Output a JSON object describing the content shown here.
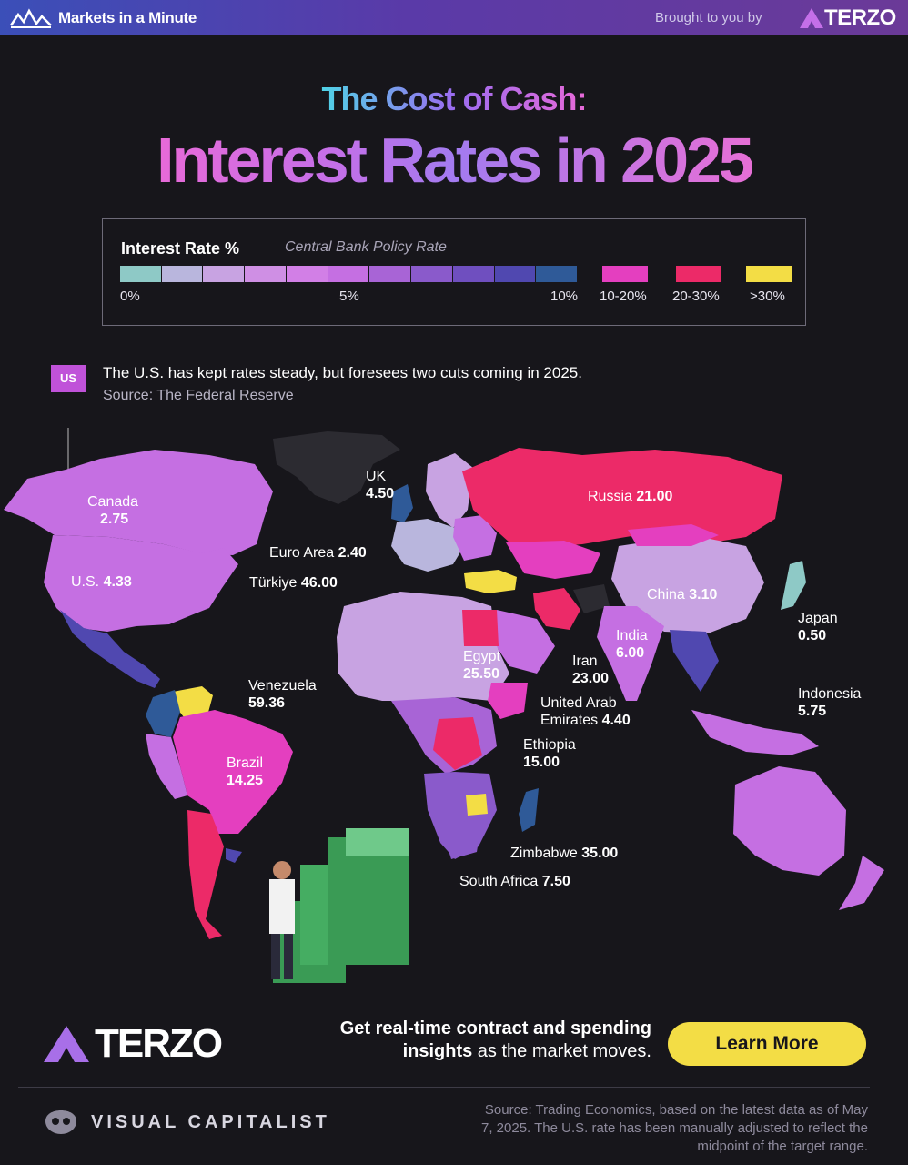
{
  "header": {
    "brand": "Markets in a Minute",
    "brought_by": "Brought to you by",
    "sponsor": "TERZO"
  },
  "title": {
    "line1": "The Cost of Cash:",
    "line2": "Interest Rates in 2025"
  },
  "legend": {
    "title": "Interest Rate %",
    "subtitle": "Central Bank Policy Rate",
    "scale_colors": [
      "#8ec9c6",
      "#b9b6dd",
      "#c8a3e2",
      "#cf8fe4",
      "#d27fe6",
      "#c56fe2",
      "#a864d6",
      "#8a5acb",
      "#6f4fbf",
      "#5048b0",
      "#2f5a98"
    ],
    "ticks": [
      "0%",
      "5%",
      "10%"
    ],
    "bins": [
      {
        "label": "10-20%",
        "color": "#e43fbf"
      },
      {
        "label": "20-30%",
        "color": "#ec2a68"
      },
      {
        "label": ">30%",
        "color": "#f3dd45"
      }
    ]
  },
  "callout": {
    "badge": "US",
    "text": "The U.S. has kept rates steady, but foresees two cuts coming in 2025.",
    "source": "Source: The Federal Reserve"
  },
  "countries": [
    {
      "name": "Canada",
      "rate": "2.75"
    },
    {
      "name": "U.S.",
      "rate": "4.38"
    },
    {
      "name": "UK",
      "rate": "4.50"
    },
    {
      "name": "Euro Area",
      "rate": "2.40"
    },
    {
      "name": "Türkiye",
      "rate": "46.00"
    },
    {
      "name": "Russia",
      "rate": "21.00"
    },
    {
      "name": "China",
      "rate": "3.10"
    },
    {
      "name": "Japan",
      "rate": "0.50"
    },
    {
      "name": "India",
      "rate": "6.00"
    },
    {
      "name": "Iran",
      "rate": "23.00"
    },
    {
      "name": "Egypt",
      "rate": "25.50"
    },
    {
      "name": "United Arab Emirates",
      "rate": "4.40"
    },
    {
      "name": "Indonesia",
      "rate": "5.75"
    },
    {
      "name": "Venezuela",
      "rate": "59.36"
    },
    {
      "name": "Brazil",
      "rate": "14.25"
    },
    {
      "name": "Ethiopia",
      "rate": "15.00"
    },
    {
      "name": "Zimbabwe",
      "rate": "35.00"
    },
    {
      "name": "South Africa",
      "rate": "7.50"
    }
  ],
  "labels": {
    "canada_name": "Canada",
    "canada_rate": "2.75",
    "us_name": "U.S.",
    "us_rate": "4.38",
    "uk_name": "UK",
    "uk_rate": "4.50",
    "euro_name": "Euro Area",
    "euro_rate": "2.40",
    "turkiye_name": "Türkiye",
    "turkiye_rate": "46.00",
    "russia_name": "Russia",
    "russia_rate": "21.00",
    "china_name": "China",
    "china_rate": "3.10",
    "japan_name": "Japan",
    "japan_rate": "0.50",
    "india_name": "India",
    "india_rate": "6.00",
    "iran_name": "Iran",
    "iran_rate": "23.00",
    "egypt_name": "Egypt",
    "egypt_rate": "25.50",
    "uae_name1": "United Arab",
    "uae_name2": "Emirates",
    "uae_rate": "4.40",
    "indonesia_name": "Indonesia",
    "indonesia_rate": "5.75",
    "venezuela_name": "Venezuela",
    "venezuela_rate": "59.36",
    "brazil_name": "Brazil",
    "brazil_rate": "14.25",
    "ethiopia_name": "Ethiopia",
    "ethiopia_rate": "15.00",
    "zimbabwe_name": "Zimbabwe",
    "zimbabwe_rate": "35.00",
    "southafrica_name": "South Africa",
    "southafrica_rate": "7.50"
  },
  "footer": {
    "logo": "TERZO",
    "cta_line1": "Get real-time contract and spending",
    "cta_line2_bold": "insights",
    "cta_line2_rest": " as the market moves.",
    "button": "Learn More",
    "publisher": "VISUAL CAPITALIST",
    "source": "Source: Trading Economics, based on the latest data as of May 7, 2025. The U.S. rate has been manually adjusted to reflect the midpoint of the target range."
  },
  "colors": {
    "bg": "#17161b",
    "accent_yellow": "#f3dd45",
    "pink": "#e43fbf",
    "red": "#ec2a68",
    "purple": "#c052d9"
  }
}
